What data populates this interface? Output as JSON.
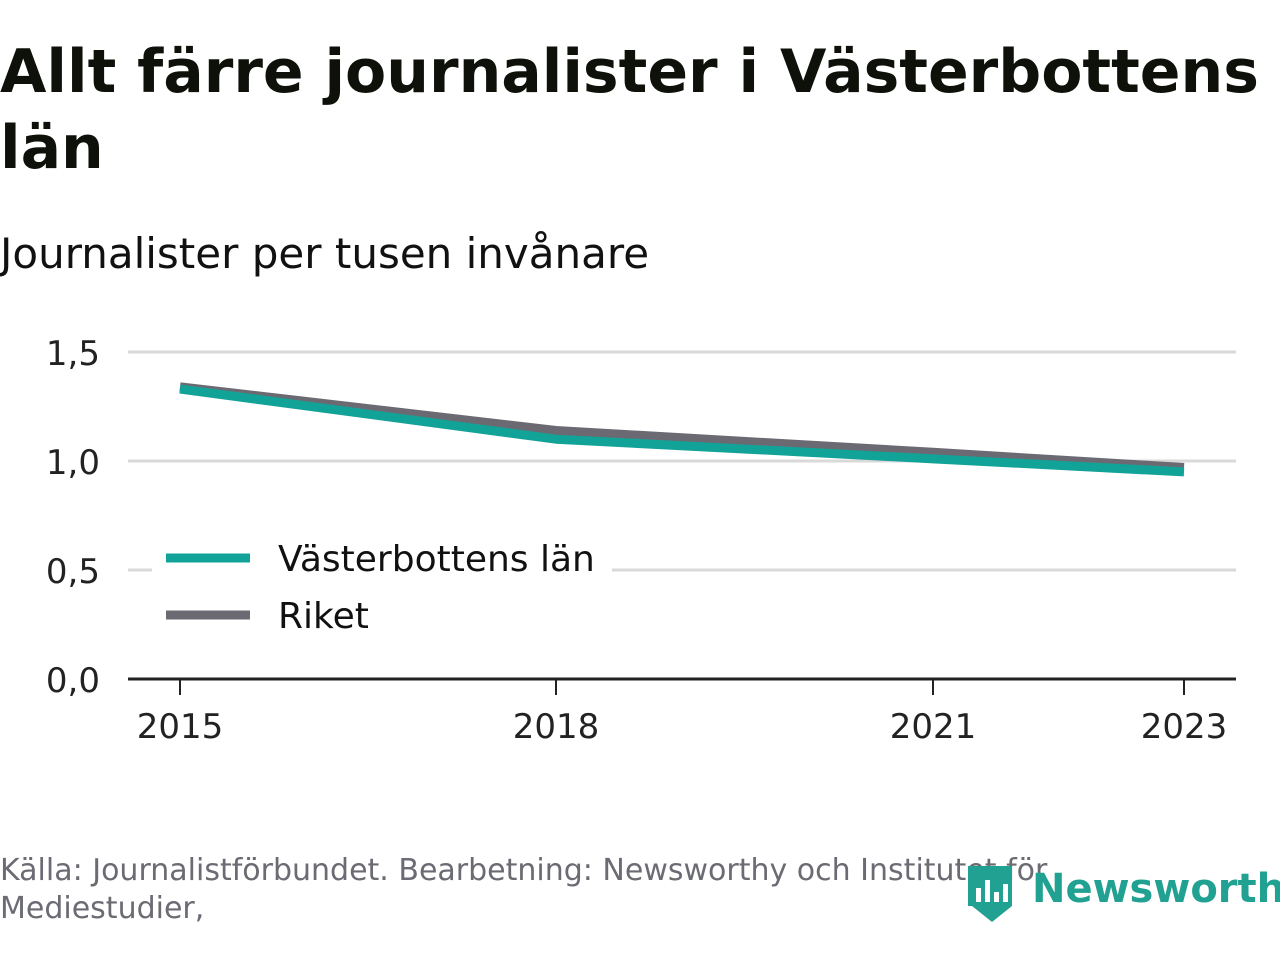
{
  "title": "Allt färre journalister i Västerbottens län",
  "subtitle": "Journalister per tusen invånare",
  "source": "Källa: Journalistförbundet. Bearbetning: Newsworthy och Institutet för Mediestudier,",
  "brand": {
    "name": "Newsworthy",
    "color": "#21a191",
    "icon": "newsworthy-logo-icon"
  },
  "colors": {
    "vasterbotten": "#12a398",
    "riket": "#6b6a73",
    "grid": "#d9d9d9",
    "axis": "#222222"
  },
  "chart_data": {
    "type": "line",
    "x": [
      2015,
      2018,
      2021,
      2023
    ],
    "xticks": [
      "2015",
      "2018",
      "2021",
      "2023"
    ],
    "yticks": [
      "0,0",
      "0,5",
      "1,0",
      "1,5"
    ],
    "ylim": [
      0,
      1.5
    ],
    "grid": true,
    "legend_position": "left-middle",
    "series": [
      {
        "name": "Riket",
        "x": [
          2015,
          2018,
          2021,
          2023
        ],
        "values": [
          1.34,
          1.14,
          1.04,
          0.97
        ]
      },
      {
        "name": "Västerbottens län",
        "x": [
          2015,
          2018,
          2021,
          2023
        ],
        "values": [
          1.33,
          1.1,
          1.01,
          0.95
        ]
      }
    ],
    "legend": [
      "Västerbottens län",
      "Riket"
    ]
  }
}
